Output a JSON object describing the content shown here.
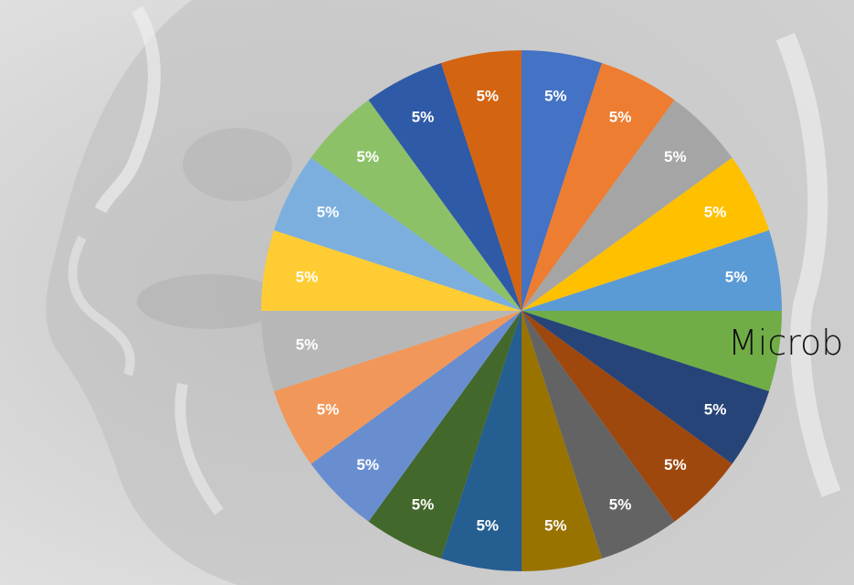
{
  "overlay_text": "Microb",
  "colors": {
    "background_light": "#e0e0e0",
    "background_gray": "#b0b0b0"
  },
  "chart_data": {
    "type": "pie",
    "title": "",
    "start_angle_deg": 0,
    "direction": "clockwise",
    "slices": [
      {
        "value": 5,
        "label": "5%",
        "color": "#4472C4"
      },
      {
        "value": 5,
        "label": "5%",
        "color": "#ED7D31"
      },
      {
        "value": 5,
        "label": "5%",
        "color": "#A5A5A5"
      },
      {
        "value": 5,
        "label": "5%",
        "color": "#FFC000"
      },
      {
        "value": 5,
        "label": "5%",
        "color": "#5B9BD5"
      },
      {
        "value": 5,
        "label": "",
        "color": "#70AD47"
      },
      {
        "value": 5,
        "label": "5%",
        "color": "#264478"
      },
      {
        "value": 5,
        "label": "5%",
        "color": "#9E480E"
      },
      {
        "value": 5,
        "label": "5%",
        "color": "#636363"
      },
      {
        "value": 5,
        "label": "5%",
        "color": "#997300"
      },
      {
        "value": 5,
        "label": "5%",
        "color": "#255E91"
      },
      {
        "value": 5,
        "label": "5%",
        "color": "#43682B"
      },
      {
        "value": 5,
        "label": "5%",
        "color": "#698ED0"
      },
      {
        "value": 5,
        "label": "5%",
        "color": "#F1975A"
      },
      {
        "value": 5,
        "label": "5%",
        "color": "#B7B7B7"
      },
      {
        "value": 5,
        "label": "5%",
        "color": "#FFCD33"
      },
      {
        "value": 5,
        "label": "5%",
        "color": "#7CAFDD"
      },
      {
        "value": 5,
        "label": "5%",
        "color": "#8CC168"
      },
      {
        "value": 5,
        "label": "5%",
        "color": "#2E5AA7"
      },
      {
        "value": 5,
        "label": "5%",
        "color": "#D36412"
      }
    ]
  }
}
